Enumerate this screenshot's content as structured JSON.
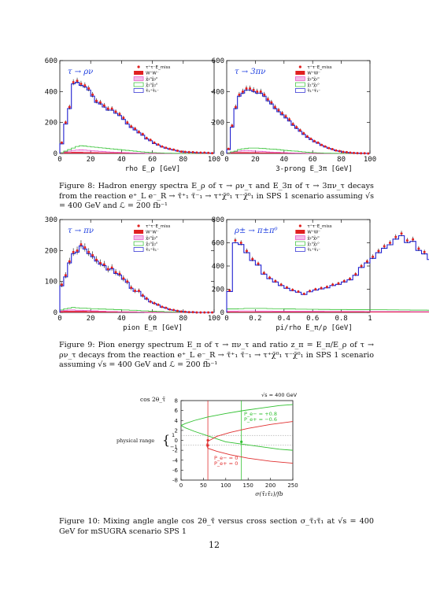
{
  "page_number": "12",
  "legend": [
    "τ⁺τ⁻E_miss",
    "W⁺W⁻",
    "χ̃₂⁰χ̃₂⁰",
    "χ̃₁⁰χ̃₂⁰",
    "τ̃₁⁺τ̃₁⁻"
  ],
  "figure8": {
    "caption": "Figure 8: Hadron energy spectra E_ρ of τ → ρν_τ and E_3π of τ → 3πν_τ decays from the reaction e⁺_L e⁻_R → τ̃⁺₁ τ̃⁻₁ → τ⁺χ̃⁰₁ τ⁻χ̃⁰₁ in SPS 1 scenario assuming √s = 400 GeV and ℒ = 200 fb⁻¹",
    "left": {
      "tag": "τ → ρν",
      "xlabel": "rho E_ρ   [GeV]",
      "xticks": [
        "0",
        "20",
        "40",
        "60",
        "80",
        "100"
      ],
      "yticks": [
        "0",
        "200",
        "400",
        "600"
      ]
    },
    "right": {
      "tag": "τ → 3πν",
      "xlabel": "3-prong E_3π   [GeV]",
      "xticks": [
        "0",
        "20",
        "40",
        "60",
        "80",
        "100"
      ],
      "yticks": [
        "0",
        "200",
        "400",
        "600"
      ]
    }
  },
  "figure9": {
    "caption": "Figure 9: Pion energy spectrum E_π of τ → πν_τ and ratio z_π = E_π/E_ρ of τ → ρν_τ decays from the reaction e⁺_L e⁻_R → τ̃⁺₁ τ̃⁻₁ → τ⁺χ̃⁰₁ τ⁻χ̃⁰₁ in SPS 1 scenario assuming √s = 400 GeV and ℒ = 200 fb⁻¹",
    "left": {
      "tag": "τ → πν",
      "xlabel": "pion E_π   [GeV]",
      "xticks": [
        "0",
        "20",
        "40",
        "60",
        "80",
        "100"
      ],
      "yticks": [
        "0",
        "100",
        "200",
        "300"
      ]
    },
    "right": {
      "tag": "ρ± → π±π⁰",
      "xlabel": "pi/rho E_π/ρ   [GeV]",
      "xticks": [
        "0",
        "0.2",
        "0.4",
        "0.6",
        "0.8",
        "1"
      ],
      "yticks": [
        "0",
        "200",
        "400",
        "600",
        "800"
      ]
    }
  },
  "figure10": {
    "caption": "Figure 10: Mixing angle angle cos 2θ_τ̃ versus cross section σ_τ̃₁τ̃₁ at √s = 400 GeV for mSUGRA scenario SPS 1",
    "ylabel": "cos 2θ_τ̃",
    "xlabel": "σ(τ̃₁τ̃₁)/fb",
    "sqrt_s": "√s = 400 GeV",
    "physical_range": "physical range",
    "range_ticks": [
      "1",
      "−1"
    ],
    "green_label_1": "P_e− = +0.8",
    "green_label_2": "P_e+ = −0.6",
    "red_label_1": "P_e− = 0",
    "red_label_2": "P_e+ = 0",
    "xticks": [
      "0",
      "50",
      "100",
      "150",
      "200",
      "250"
    ],
    "yticks": [
      "8",
      "6",
      "4",
      "2",
      "0",
      "-2",
      "-4",
      "-6",
      "-8"
    ]
  },
  "chart_data": [
    {
      "type": "histogram",
      "xlabel": "rho E_ρ [GeV]",
      "xlim": [
        0,
        100
      ],
      "ylim": [
        0,
        600
      ],
      "bin_width": 2.5,
      "series": [
        {
          "name": "τ⁺τ⁻E_miss",
          "values": [
            70,
            200,
            300,
            460,
            470,
            450,
            440,
            420,
            380,
            340,
            330,
            310,
            290,
            290,
            270,
            255,
            230,
            200,
            175,
            160,
            140,
            125,
            100,
            88,
            70,
            58,
            45,
            37,
            30,
            25,
            18,
            12,
            10,
            9,
            8,
            6,
            5,
            5,
            4,
            2
          ]
        },
        {
          "name": "τ̃₁⁺τ̃₁⁻",
          "values": [
            62,
            190,
            290,
            450,
            460,
            440,
            430,
            410,
            370,
            330,
            320,
            300,
            280,
            280,
            260,
            245,
            220,
            190,
            168,
            152,
            133,
            118,
            94,
            82,
            64,
            54,
            42,
            34,
            27,
            22,
            16,
            11,
            9,
            8,
            7,
            5,
            4,
            4,
            3,
            2
          ]
        },
        {
          "name": "χ̃₁⁰χ̃₂⁰",
          "values": [
            5,
            15,
            25,
            35,
            45,
            50,
            48,
            45,
            42,
            40,
            37,
            35,
            32,
            30,
            27,
            25,
            22,
            20,
            17,
            15,
            12,
            10,
            8,
            6,
            5,
            4,
            3,
            2,
            2,
            1,
            1,
            0,
            0,
            0,
            0,
            0,
            0,
            0,
            0,
            0
          ]
        },
        {
          "name": "χ̃₂⁰χ̃₂⁰",
          "values": [
            3,
            10,
            15,
            20,
            22,
            24,
            22,
            20,
            18,
            16,
            14,
            12,
            10,
            9,
            8,
            7,
            6,
            5,
            4,
            3,
            2,
            2,
            1,
            1,
            0,
            0,
            0,
            0,
            0,
            0,
            0,
            0,
            0,
            0,
            0,
            0,
            0,
            0,
            0,
            0
          ]
        },
        {
          "name": "W⁺W⁻",
          "values": [
            4,
            6,
            7,
            8,
            8,
            8,
            7,
            7,
            6,
            6,
            5,
            5,
            4,
            4,
            4,
            3,
            3,
            3,
            2,
            2,
            2,
            2,
            1,
            1,
            1,
            1,
            1,
            1,
            1,
            1,
            1,
            0,
            0,
            0,
            0,
            0,
            0,
            0,
            0,
            0
          ]
        }
      ]
    },
    {
      "type": "histogram",
      "xlabel": "3-prong E_3π [GeV]",
      "xlim": [
        0,
        100
      ],
      "ylim": [
        0,
        600
      ],
      "bin_width": 2.5,
      "series": [
        {
          "name": "τ⁺τ⁻E_miss",
          "values": [
            30,
            180,
            300,
            380,
            400,
            420,
            420,
            410,
            400,
            400,
            380,
            350,
            330,
            300,
            280,
            260,
            240,
            220,
            190,
            170,
            150,
            130,
            110,
            95,
            80,
            70,
            55,
            45,
            35,
            28,
            20,
            15,
            10,
            8,
            5,
            3,
            2,
            1,
            1,
            0
          ]
        },
        {
          "name": "τ̃₁⁺τ̃₁⁻",
          "values": [
            25,
            170,
            290,
            370,
            390,
            410,
            410,
            400,
            390,
            390,
            370,
            340,
            320,
            290,
            270,
            250,
            230,
            210,
            182,
            162,
            143,
            123,
            104,
            90,
            75,
            66,
            52,
            42,
            33,
            26,
            18,
            14,
            9,
            7,
            4,
            3,
            2,
            1,
            1,
            0
          ]
        },
        {
          "name": "χ̃₁⁰χ̃₂⁰",
          "values": [
            5,
            10,
            15,
            25,
            30,
            32,
            35,
            35,
            35,
            33,
            32,
            30,
            28,
            27,
            25,
            22,
            20,
            18,
            16,
            15,
            12,
            10,
            8,
            6,
            5,
            4,
            3,
            2,
            2,
            1,
            1,
            0,
            0,
            0,
            0,
            0,
            0,
            0,
            0,
            0
          ]
        },
        {
          "name": "χ̃₂⁰χ̃₂⁰",
          "values": [
            2,
            8,
            12,
            15,
            18,
            20,
            18,
            16,
            15,
            14,
            12,
            10,
            9,
            8,
            7,
            6,
            5,
            4,
            3,
            2,
            2,
            1,
            1,
            0,
            0,
            0,
            0,
            0,
            0,
            0,
            0,
            0,
            0,
            0,
            0,
            0,
            0,
            0,
            0,
            0
          ]
        },
        {
          "name": "W⁺W⁻",
          "values": [
            3,
            5,
            6,
            7,
            7,
            7,
            6,
            6,
            6,
            5,
            5,
            5,
            4,
            4,
            4,
            3,
            3,
            3,
            2,
            2,
            2,
            2,
            1,
            1,
            1,
            1,
            1,
            1,
            0,
            0,
            0,
            0,
            0,
            0,
            0,
            0,
            0,
            0,
            0,
            0
          ]
        }
      ]
    },
    {
      "type": "histogram",
      "xlabel": "pion E_π [GeV]",
      "xlim": [
        0,
        100
      ],
      "ylim": [
        0,
        300
      ],
      "bin_width": 2.5,
      "series": [
        {
          "name": "τ⁺τ⁻E_miss",
          "values": [
            90,
            120,
            165,
            195,
            200,
            220,
            210,
            195,
            185,
            170,
            160,
            155,
            140,
            145,
            130,
            125,
            110,
            100,
            80,
            70,
            70,
            55,
            45,
            35,
            30,
            25,
            18,
            15,
            10,
            8,
            5,
            3,
            2,
            1,
            1,
            0,
            0,
            0,
            0,
            0
          ]
        },
        {
          "name": "τ̃₁⁺τ̃₁⁻",
          "values": [
            86,
            115,
            160,
            190,
            195,
            215,
            205,
            190,
            180,
            166,
            156,
            151,
            137,
            141,
            126,
            121,
            107,
            97,
            78,
            68,
            68,
            53,
            43,
            34,
            29,
            24,
            17,
            14,
            9,
            7,
            5,
            3,
            2,
            1,
            1,
            0,
            0,
            0,
            0,
            0
          ]
        },
        {
          "name": "χ̃₁⁰χ̃₂⁰",
          "values": [
            8,
            12,
            14,
            16,
            15,
            14,
            14,
            13,
            12,
            12,
            11,
            11,
            10,
            10,
            9,
            9,
            8,
            8,
            7,
            7,
            6,
            5,
            5,
            4,
            4,
            3,
            3,
            2,
            2,
            1,
            1,
            1,
            0,
            0,
            0,
            0,
            0,
            0,
            0,
            0
          ]
        },
        {
          "name": "χ̃₂⁰χ̃₂⁰",
          "values": [
            5,
            7,
            8,
            8,
            7,
            7,
            6,
            6,
            5,
            5,
            4,
            4,
            3,
            3,
            3,
            2,
            2,
            2,
            1,
            1,
            1,
            1,
            0,
            0,
            0,
            0,
            0,
            0,
            0,
            0,
            0,
            0,
            0,
            0,
            0,
            0,
            0,
            0,
            0,
            0
          ]
        },
        {
          "name": "W⁺W⁻",
          "values": [
            3,
            4,
            4,
            4,
            4,
            4,
            4,
            3,
            3,
            3,
            3,
            3,
            3,
            2,
            2,
            2,
            2,
            2,
            2,
            2,
            1,
            1,
            1,
            1,
            1,
            1,
            1,
            1,
            1,
            1,
            1,
            1,
            0,
            0,
            0,
            0,
            0,
            0,
            0,
            0
          ]
        }
      ]
    },
    {
      "type": "histogram",
      "xlabel": "pi/rho E_π/ρ [GeV]",
      "xlim": [
        0,
        1
      ],
      "ylim": [
        0,
        800
      ],
      "bin_width": 0.04,
      "series": [
        {
          "name": "τ⁺τ⁻E_miss",
          "values": [
            190,
            620,
            600,
            530,
            460,
            420,
            340,
            300,
            270,
            240,
            215,
            195,
            180,
            160,
            185,
            200,
            210,
            220,
            240,
            250,
            270,
            290,
            330,
            400,
            440,
            480,
            530,
            570,
            600,
            650,
            680,
            620,
            630,
            550,
            520,
            470,
            430,
            400,
            330,
            330
          ]
        },
        {
          "name": "τ̃₁⁺τ̃₁⁻",
          "values": [
            180,
            600,
            585,
            515,
            448,
            408,
            330,
            291,
            262,
            232,
            208,
            188,
            174,
            155,
            178,
            193,
            203,
            212,
            232,
            242,
            262,
            281,
            320,
            388,
            427,
            466,
            515,
            553,
            583,
            632,
            661,
            602,
            612,
            534,
            505,
            456,
            417,
            388,
            320,
            320
          ]
        },
        {
          "name": "χ̃₁⁰χ̃₂⁰",
          "values": [
            30,
            30,
            32,
            35,
            35,
            35,
            35,
            33,
            32,
            32,
            30,
            30,
            28,
            28,
            27,
            27,
            26,
            26,
            25,
            25,
            25,
            24,
            24,
            24,
            24,
            23,
            23,
            23,
            22,
            22,
            21,
            21,
            20,
            20,
            20,
            19,
            19,
            18,
            18,
            18
          ]
        },
        {
          "name": "χ̃₂⁰χ̃₂⁰",
          "values": [
            12,
            12,
            13,
            13,
            13,
            12,
            12,
            12,
            11,
            11,
            11,
            10,
            10,
            10,
            10,
            10,
            10,
            9,
            9,
            9,
            9,
            9,
            9,
            9,
            8,
            8,
            8,
            8,
            8,
            8,
            8,
            8,
            7,
            7,
            7,
            7,
            7,
            7,
            7,
            7
          ]
        },
        {
          "name": "W⁺W⁻",
          "values": [
            5,
            5,
            5,
            5,
            5,
            5,
            5,
            5,
            5,
            5,
            5,
            5,
            5,
            5,
            5,
            5,
            5,
            5,
            5,
            5,
            5,
            5,
            5,
            5,
            5,
            5,
            5,
            5,
            5,
            5,
            5,
            5,
            5,
            5,
            5,
            5,
            5,
            5,
            5,
            5
          ]
        }
      ]
    },
    {
      "type": "line",
      "xlabel": "σ(τ̃₁τ̃₁)/fb",
      "ylabel": "cos 2θ_τ̃",
      "xlim": [
        0,
        250
      ],
      "ylim": [
        -8,
        8
      ],
      "series": [
        {
          "name": "P_e− = +0.8, P_e+ = −0.6 (upper)",
          "x": [
            0,
            10,
            30,
            60,
            100,
            140,
            180,
            220,
            250
          ],
          "y": [
            3.0,
            3.4,
            4.0,
            4.7,
            5.4,
            6.0,
            6.5,
            7.0,
            7.2
          ]
        },
        {
          "name": "P_e− = +0.8, P_e+ = −0.6 (lower)",
          "x": [
            0,
            10,
            30,
            60,
            100,
            140,
            180,
            220,
            250
          ],
          "y": [
            3.0,
            2.5,
            1.8,
            0.9,
            -0.3,
            -0.8,
            -1.3,
            -1.8,
            -2.0
          ]
        },
        {
          "name": "P_e− = 0, P_e+ = 0 (upper)",
          "x": [
            57,
            60,
            80,
            110,
            150,
            200,
            250
          ],
          "y": [
            -1.0,
            -0.2,
            0.8,
            1.6,
            2.4,
            3.2,
            3.8
          ]
        },
        {
          "name": "P_e− = 0, P_e+ = 0 (lower)",
          "x": [
            57,
            60,
            80,
            110,
            150,
            200,
            250
          ],
          "y": [
            -1.0,
            -1.6,
            -2.2,
            -2.9,
            -3.6,
            -4.2,
            -4.6
          ]
        }
      ],
      "markers": [
        {
          "x": 60,
          "y": 0
        },
        {
          "x": 60,
          "y": -1
        },
        {
          "x": 135,
          "y": -0.3
        }
      ],
      "vlines": [
        {
          "x": 60,
          "color": "#e03030"
        },
        {
          "x": 135,
          "color": "#30c030"
        }
      ]
    }
  ]
}
